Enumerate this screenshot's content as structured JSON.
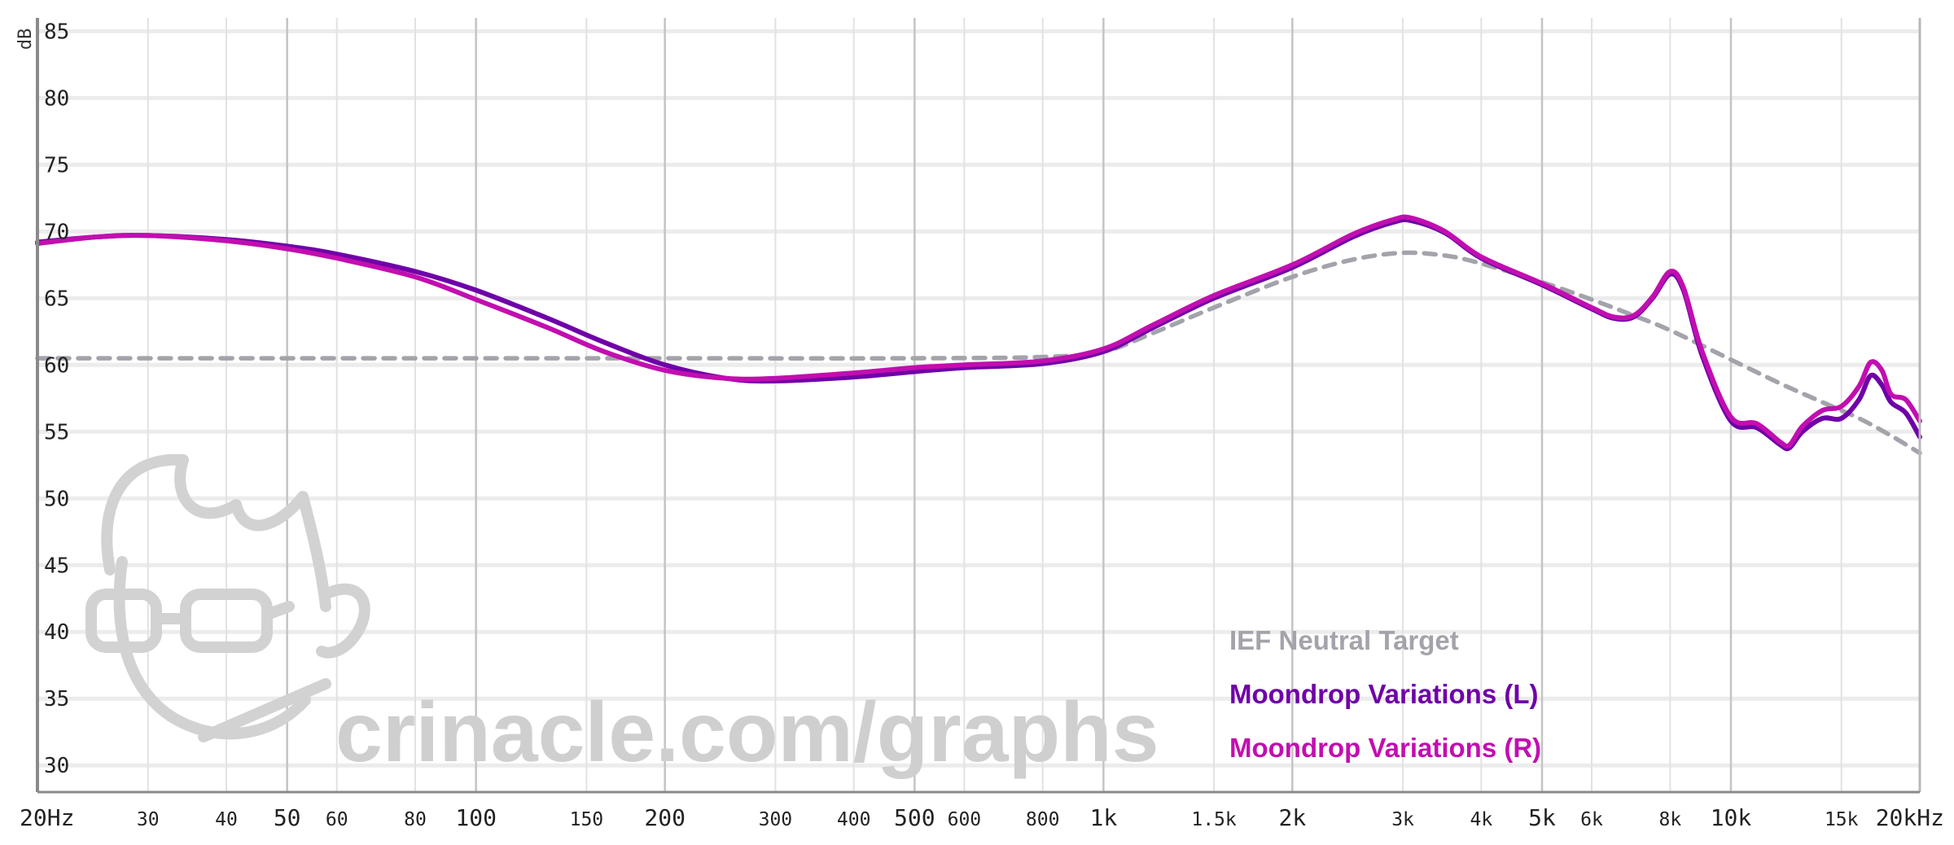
{
  "chart_data": {
    "type": "line",
    "ylabel": "dB",
    "xscale": "log",
    "xlim": [
      20,
      20000
    ],
    "ylim": [
      28,
      86
    ],
    "grid": true,
    "legend_position": "bottom-right",
    "y_ticks": [
      {
        "value": 30,
        "label": "30"
      },
      {
        "value": 35,
        "label": "35"
      },
      {
        "value": 40,
        "label": "40"
      },
      {
        "value": 45,
        "label": "45"
      },
      {
        "value": 50,
        "label": "50"
      },
      {
        "value": 55,
        "label": "55"
      },
      {
        "value": 60,
        "label": "60"
      },
      {
        "value": 65,
        "label": "65"
      },
      {
        "value": 70,
        "label": "70"
      },
      {
        "value": 75,
        "label": "75"
      },
      {
        "value": 80,
        "label": "80"
      },
      {
        "value": 85,
        "label": "85"
      }
    ],
    "x_ticks": [
      {
        "value": 20,
        "label": "20Hz",
        "major": true
      },
      {
        "value": 30,
        "label": "30",
        "major": false
      },
      {
        "value": 40,
        "label": "40",
        "major": false
      },
      {
        "value": 50,
        "label": "50",
        "major": true
      },
      {
        "value": 60,
        "label": "60",
        "major": false
      },
      {
        "value": 80,
        "label": "80",
        "major": false
      },
      {
        "value": 100,
        "label": "100",
        "major": true
      },
      {
        "value": 150,
        "label": "150",
        "major": false
      },
      {
        "value": 200,
        "label": "200",
        "major": true
      },
      {
        "value": 300,
        "label": "300",
        "major": false
      },
      {
        "value": 400,
        "label": "400",
        "major": false
      },
      {
        "value": 500,
        "label": "500",
        "major": true
      },
      {
        "value": 600,
        "label": "600",
        "major": false
      },
      {
        "value": 800,
        "label": "800",
        "major": false
      },
      {
        "value": 1000,
        "label": "1k",
        "major": true
      },
      {
        "value": 1500,
        "label": "1.5k",
        "major": false
      },
      {
        "value": 2000,
        "label": "2k",
        "major": true
      },
      {
        "value": 3000,
        "label": "3k",
        "major": false
      },
      {
        "value": 4000,
        "label": "4k",
        "major": false
      },
      {
        "value": 5000,
        "label": "5k",
        "major": true
      },
      {
        "value": 6000,
        "label": "6k",
        "major": false
      },
      {
        "value": 8000,
        "label": "8k",
        "major": false
      },
      {
        "value": 10000,
        "label": "10k",
        "major": true
      },
      {
        "value": 15000,
        "label": "15k",
        "major": false
      },
      {
        "value": 20000,
        "label": "20kHz",
        "major": true
      }
    ],
    "series": [
      {
        "name": "IEF Neutral Target",
        "color": "#a3a3ab",
        "dashed": true,
        "points": [
          [
            20,
            60.5
          ],
          [
            50,
            60.5
          ],
          [
            100,
            60.5
          ],
          [
            200,
            60.5
          ],
          [
            500,
            60.5
          ],
          [
            800,
            60.6
          ],
          [
            1000,
            61.0
          ],
          [
            1200,
            62.4
          ],
          [
            1500,
            64.3
          ],
          [
            2000,
            66.6
          ],
          [
            2500,
            67.9
          ],
          [
            3000,
            68.4
          ],
          [
            3500,
            68.2
          ],
          [
            4000,
            67.6
          ],
          [
            5000,
            66.2
          ],
          [
            6000,
            64.9
          ],
          [
            7000,
            63.7
          ],
          [
            8000,
            62.6
          ],
          [
            10000,
            60.4
          ],
          [
            12000,
            58.6
          ],
          [
            14000,
            57.2
          ],
          [
            16000,
            56.0
          ],
          [
            18000,
            54.7
          ],
          [
            20000,
            53.4
          ]
        ]
      },
      {
        "name": "Moondrop Variations (L)",
        "color": "#6f00a8",
        "dashed": false,
        "points": [
          [
            20,
            69.2
          ],
          [
            25,
            69.6
          ],
          [
            30,
            69.7
          ],
          [
            40,
            69.4
          ],
          [
            50,
            68.9
          ],
          [
            60,
            68.3
          ],
          [
            80,
            67.0
          ],
          [
            100,
            65.6
          ],
          [
            130,
            63.5
          ],
          [
            160,
            61.7
          ],
          [
            200,
            60.0
          ],
          [
            250,
            59.0
          ],
          [
            300,
            58.8
          ],
          [
            400,
            59.1
          ],
          [
            500,
            59.5
          ],
          [
            600,
            59.8
          ],
          [
            800,
            60.1
          ],
          [
            1000,
            61.0
          ],
          [
            1200,
            62.8
          ],
          [
            1500,
            65.0
          ],
          [
            2000,
            67.3
          ],
          [
            2500,
            69.6
          ],
          [
            2900,
            70.7
          ],
          [
            3100,
            70.8
          ],
          [
            3500,
            69.9
          ],
          [
            4000,
            68.0
          ],
          [
            5000,
            66.0
          ],
          [
            6000,
            64.2
          ],
          [
            6500,
            63.5
          ],
          [
            7000,
            63.6
          ],
          [
            7500,
            65.0
          ],
          [
            8000,
            66.8
          ],
          [
            8400,
            65.6
          ],
          [
            9000,
            60.7
          ],
          [
            10000,
            55.8
          ],
          [
            11000,
            55.3
          ],
          [
            12000,
            54.0
          ],
          [
            12400,
            53.8
          ],
          [
            13000,
            55.0
          ],
          [
            14000,
            56.0
          ],
          [
            15000,
            56.0
          ],
          [
            16000,
            57.4
          ],
          [
            16700,
            59.2
          ],
          [
            17400,
            58.5
          ],
          [
            18000,
            57.2
          ],
          [
            19000,
            56.4
          ],
          [
            20000,
            54.6
          ]
        ]
      },
      {
        "name": "Moondrop Variations (R)",
        "color": "#c20eb0",
        "dashed": false,
        "points": [
          [
            20,
            69.1
          ],
          [
            25,
            69.6
          ],
          [
            30,
            69.7
          ],
          [
            40,
            69.3
          ],
          [
            50,
            68.7
          ],
          [
            60,
            68.0
          ],
          [
            80,
            66.6
          ],
          [
            100,
            64.9
          ],
          [
            130,
            62.8
          ],
          [
            160,
            61.0
          ],
          [
            200,
            59.6
          ],
          [
            250,
            59.0
          ],
          [
            300,
            59.0
          ],
          [
            400,
            59.4
          ],
          [
            500,
            59.8
          ],
          [
            600,
            60.0
          ],
          [
            800,
            60.3
          ],
          [
            1000,
            61.2
          ],
          [
            1200,
            63.0
          ],
          [
            1500,
            65.2
          ],
          [
            2000,
            67.5
          ],
          [
            2500,
            69.8
          ],
          [
            2900,
            70.9
          ],
          [
            3100,
            71.0
          ],
          [
            3500,
            70.0
          ],
          [
            4000,
            68.1
          ],
          [
            5000,
            66.1
          ],
          [
            6000,
            64.3
          ],
          [
            6500,
            63.6
          ],
          [
            7000,
            63.7
          ],
          [
            7500,
            65.1
          ],
          [
            8000,
            67.0
          ],
          [
            8400,
            65.8
          ],
          [
            9000,
            61.0
          ],
          [
            10000,
            56.1
          ],
          [
            11000,
            55.6
          ],
          [
            12000,
            54.2
          ],
          [
            12400,
            54.0
          ],
          [
            13000,
            55.4
          ],
          [
            14000,
            56.6
          ],
          [
            15000,
            56.9
          ],
          [
            16000,
            58.4
          ],
          [
            16700,
            60.2
          ],
          [
            17400,
            59.6
          ],
          [
            18000,
            57.8
          ],
          [
            19000,
            57.4
          ],
          [
            20000,
            55.8
          ]
        ]
      }
    ]
  },
  "watermark": {
    "text": "crinacle.com/graphs",
    "logo": "crinacle-logo"
  }
}
